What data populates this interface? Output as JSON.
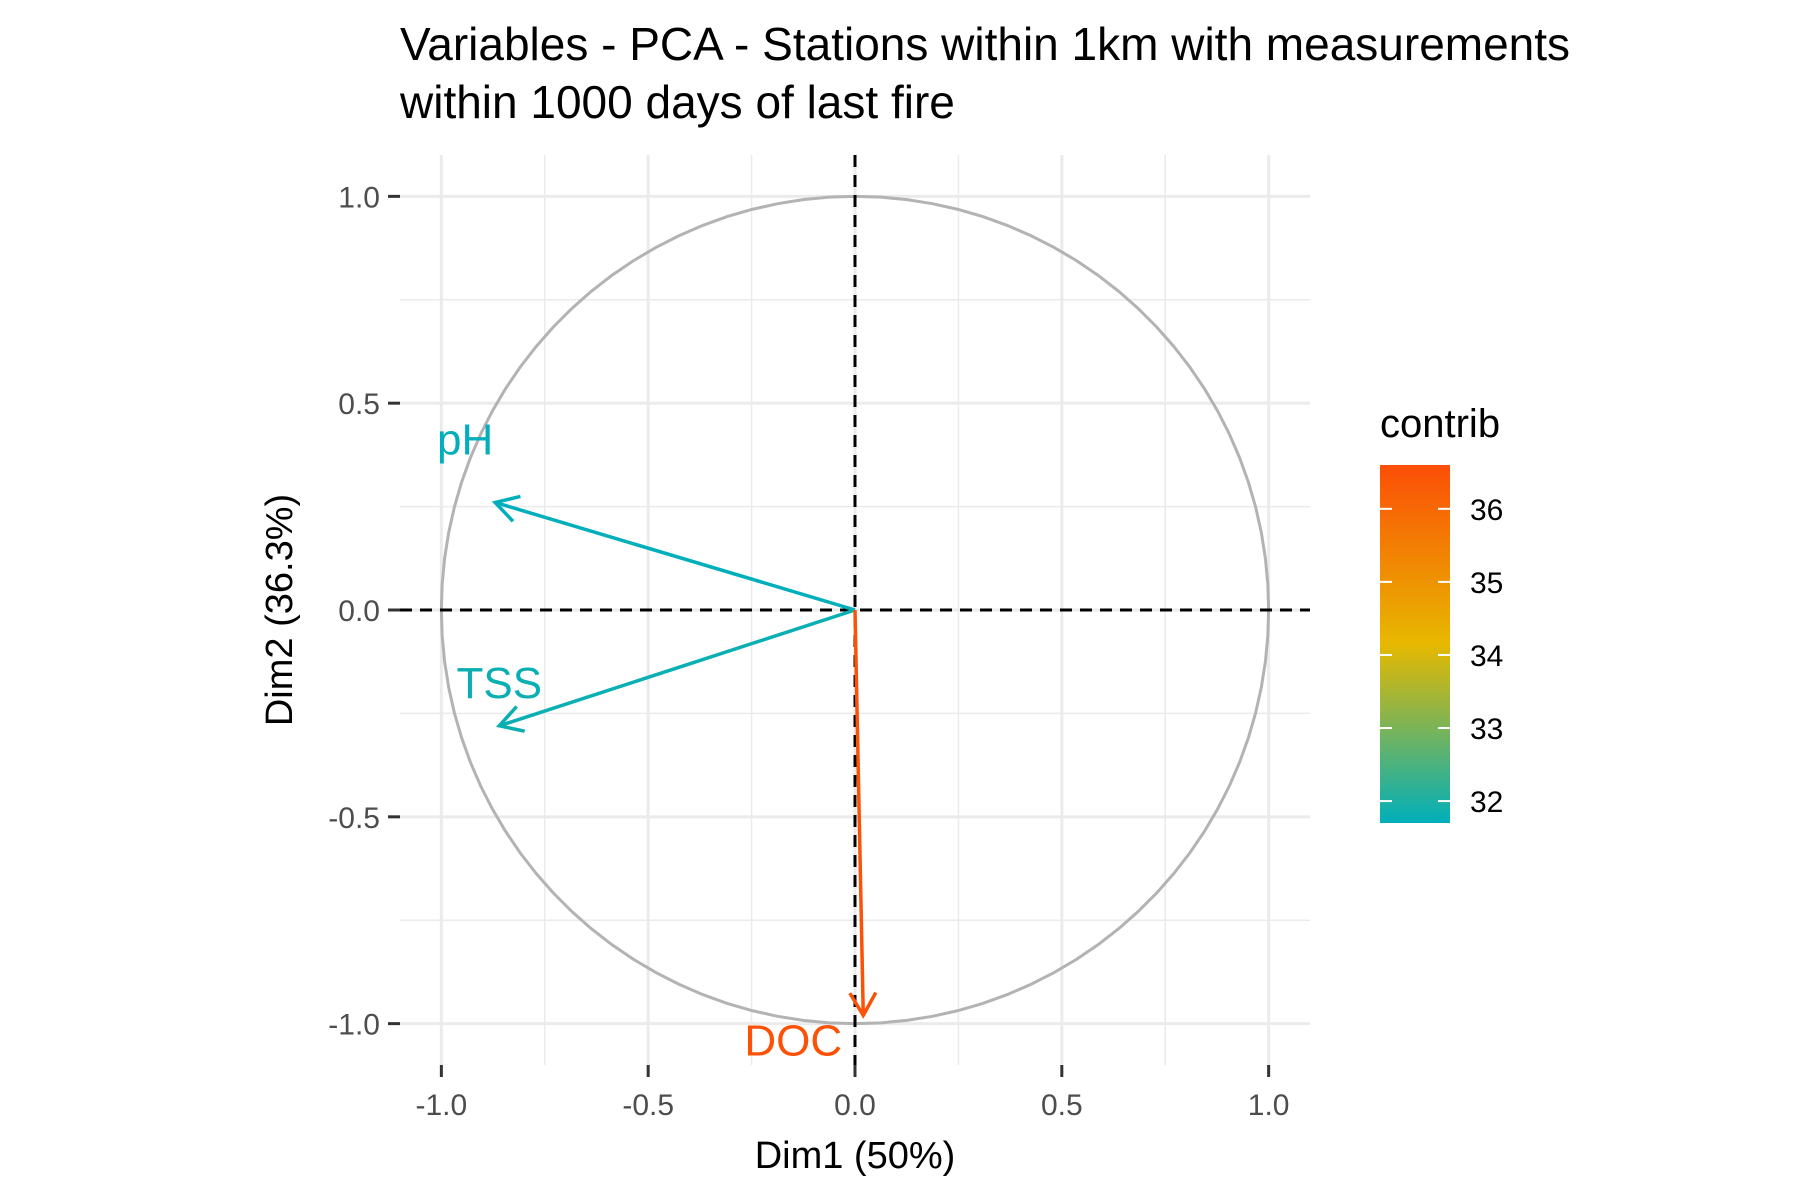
{
  "chart_data": {
    "type": "scatter",
    "subtype": "pca-variable-correlation-circle",
    "title_lines": [
      "Variables - PCA - Stations within 1km with measurements",
      "within 1000 days of last fire"
    ],
    "xlabel": "Dim1 (50%)",
    "ylabel": "Dim2 (36.3%)",
    "xlim": [
      -1.1,
      1.1
    ],
    "ylim": [
      -1.1,
      1.1
    ],
    "xticks": [
      -1.0,
      -0.5,
      0.0,
      0.5,
      1.0
    ],
    "yticks": [
      -1.0,
      -0.5,
      0.0,
      0.5,
      1.0
    ],
    "xtick_labels": [
      "-1.0",
      "-0.5",
      "0.0",
      "0.5",
      "1.0"
    ],
    "ytick_labels": [
      "-1.0",
      "-0.5",
      "0.0",
      "0.5",
      "1.0"
    ],
    "grid": true,
    "unit_circle": true,
    "variables": [
      {
        "name": "pH",
        "x": -0.87,
        "y": 0.26,
        "contrib": 31.7
      },
      {
        "name": "TSS",
        "x": -0.86,
        "y": -0.28,
        "contrib": 31.8
      },
      {
        "name": "DOC",
        "x": 0.02,
        "y": -0.98,
        "contrib": 36.5
      }
    ],
    "legend": {
      "title": "contrib",
      "position": "right",
      "range": [
        31.7,
        36.6
      ],
      "ticks": [
        32,
        33,
        34,
        35,
        36
      ],
      "tick_labels": [
        "32",
        "33",
        "34",
        "35",
        "36"
      ],
      "gradient_colors": [
        "#00AFBB",
        "#E7B800",
        "#FC4E07"
      ]
    },
    "colors": {
      "circle": "#b3b3b3",
      "grid": "#ebebeb",
      "dashed": "#000000"
    }
  }
}
